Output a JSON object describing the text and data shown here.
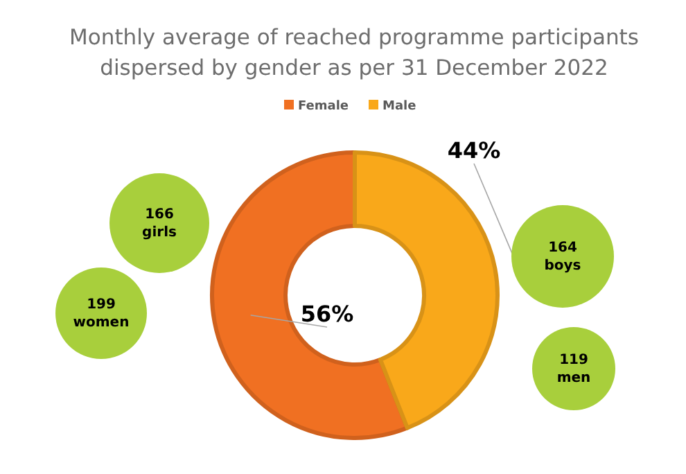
{
  "chart_data": {
    "type": "donut",
    "title": "Monthly average of reached programme participants dispersed by gender as per 31 December 2022",
    "categories": [
      "Female",
      "Male"
    ],
    "values": [
      56,
      44
    ],
    "colors": [
      "#f07022",
      "#f9a81a"
    ],
    "value_labels": [
      "56%",
      "44%"
    ],
    "legend": "top",
    "annotations": [
      "166 girls",
      "199 women",
      "164 boys",
      "119 men"
    ]
  }
}
